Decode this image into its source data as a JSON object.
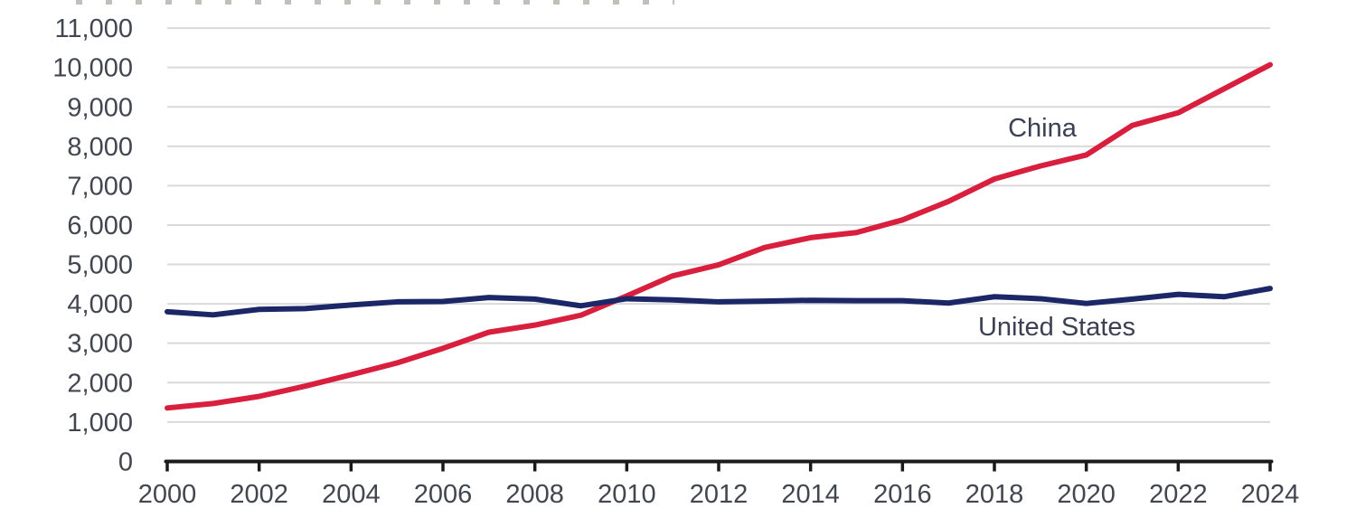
{
  "page": {
    "background": "#ffffff"
  },
  "colors": {
    "grid": "#d9d9d9",
    "axis": "#1a1a1a",
    "tick_label": "#42464f",
    "series_label": "#3b4152",
    "china": "#d81f3d",
    "united_states": "#1b2766"
  },
  "chart_data": {
    "type": "line",
    "x": [
      2000,
      2001,
      2002,
      2003,
      2004,
      2005,
      2006,
      2007,
      2008,
      2009,
      2010,
      2011,
      2012,
      2013,
      2014,
      2015,
      2016,
      2017,
      2018,
      2019,
      2020,
      2021,
      2022,
      2023,
      2024
    ],
    "series": [
      {
        "name": "China",
        "color": "#d81f3d",
        "values": [
          1356,
          1470,
          1650,
          1910,
          2200,
          2500,
          2870,
          3280,
          3460,
          3710,
          4200,
          4710,
          4990,
          5430,
          5680,
          5810,
          6130,
          6600,
          7170,
          7500,
          7780,
          8530,
          8850,
          9460,
          10070
        ]
      },
      {
        "name": "United States",
        "color": "#1b2766",
        "values": [
          3800,
          3720,
          3860,
          3880,
          3970,
          4050,
          4060,
          4160,
          4120,
          3950,
          4130,
          4100,
          4050,
          4070,
          4090,
          4080,
          4080,
          4020,
          4180,
          4130,
          4010,
          4120,
          4240,
          4180,
          4390
        ]
      }
    ],
    "xlim": [
      2000,
      2024
    ],
    "ylim": [
      0,
      11000
    ],
    "grid": "horizontal",
    "legend": "inline-labels",
    "y_ticks": [
      {
        "value": 0,
        "label": "0"
      },
      {
        "value": 1000,
        "label": "1,000"
      },
      {
        "value": 2000,
        "label": "2,000"
      },
      {
        "value": 3000,
        "label": "3,000"
      },
      {
        "value": 4000,
        "label": "4,000"
      },
      {
        "value": 5000,
        "label": "5,000"
      },
      {
        "value": 6000,
        "label": "6,000"
      },
      {
        "value": 7000,
        "label": "7,000"
      },
      {
        "value": 8000,
        "label": "8,000"
      },
      {
        "value": 9000,
        "label": "9,000"
      },
      {
        "value": 10000,
        "label": "10,000"
      },
      {
        "value": 11000,
        "label": "11,000"
      }
    ],
    "x_ticks": [
      {
        "value": 2000,
        "label": "2000"
      },
      {
        "value": 2002,
        "label": "2002"
      },
      {
        "value": 2004,
        "label": "2004"
      },
      {
        "value": 2006,
        "label": "2006"
      },
      {
        "value": 2008,
        "label": "2008"
      },
      {
        "value": 2010,
        "label": "2010"
      },
      {
        "value": 2012,
        "label": "2012"
      },
      {
        "value": 2014,
        "label": "2014"
      },
      {
        "value": 2016,
        "label": "2016"
      },
      {
        "value": 2018,
        "label": "2018"
      },
      {
        "value": 2020,
        "label": "2020"
      },
      {
        "value": 2022,
        "label": "2022"
      },
      {
        "value": 2024,
        "label": "2024"
      }
    ]
  }
}
